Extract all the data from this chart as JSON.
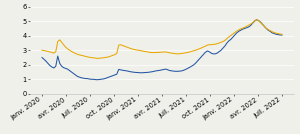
{
  "title": "",
  "ylim": [
    0,
    6
  ],
  "yticks": [
    0,
    1,
    2,
    3,
    4,
    5,
    6
  ],
  "color_blue": "#2255a4",
  "color_orange": "#e8a800",
  "xtick_labels": [
    "janv. 2020",
    "avr. 2020",
    "juil. 2020",
    "oct. 2020",
    "janv. 2021",
    "avr. 2021",
    "juil. 2021",
    "oct. 2021",
    "janv. 2022",
    "avr. 2022",
    "juil. 2022"
  ],
  "blue_y": [
    2.5,
    2.38,
    2.25,
    2.1,
    1.95,
    1.85,
    1.78,
    1.9,
    2.6,
    2.1,
    1.9,
    1.8,
    1.75,
    1.7,
    1.6,
    1.5,
    1.4,
    1.3,
    1.2,
    1.15,
    1.1,
    1.08,
    1.05,
    1.05,
    1.02,
    1.0,
    1.0,
    0.98,
    0.97,
    0.98,
    1.0,
    1.02,
    1.05,
    1.1,
    1.15,
    1.2,
    1.25,
    1.3,
    1.35,
    1.68,
    1.65,
    1.62,
    1.6,
    1.58,
    1.55,
    1.52,
    1.5,
    1.48,
    1.47,
    1.46,
    1.45,
    1.45,
    1.46,
    1.47,
    1.48,
    1.5,
    1.52,
    1.55,
    1.58,
    1.6,
    1.62,
    1.65,
    1.68,
    1.7,
    1.65,
    1.6,
    1.58,
    1.56,
    1.55,
    1.55,
    1.56,
    1.58,
    1.62,
    1.68,
    1.75,
    1.82,
    1.9,
    1.98,
    2.1,
    2.25,
    2.4,
    2.55,
    2.7,
    2.85,
    2.95,
    2.9,
    2.8,
    2.75,
    2.75,
    2.8,
    2.9,
    3.0,
    3.15,
    3.3,
    3.5,
    3.65,
    3.75,
    3.9,
    4.05,
    4.2,
    4.3,
    4.38,
    4.45,
    4.5,
    4.55,
    4.6,
    4.7,
    4.85,
    5.0,
    5.1,
    5.05,
    4.95,
    4.8,
    4.65,
    4.5,
    4.38,
    4.3,
    4.2,
    4.15,
    4.1,
    4.08,
    4.05,
    4.05
  ],
  "orange_y": [
    3.0,
    2.98,
    2.95,
    2.92,
    2.88,
    2.85,
    2.8,
    2.9,
    3.6,
    3.72,
    3.55,
    3.38,
    3.22,
    3.1,
    3.0,
    2.92,
    2.85,
    2.78,
    2.72,
    2.68,
    2.65,
    2.62,
    2.58,
    2.55,
    2.52,
    2.5,
    2.48,
    2.46,
    2.44,
    2.45,
    2.46,
    2.48,
    2.5,
    2.52,
    2.55,
    2.6,
    2.65,
    2.7,
    2.78,
    3.35,
    3.38,
    3.32,
    3.28,
    3.22,
    3.18,
    3.12,
    3.08,
    3.05,
    3.02,
    3.0,
    2.98,
    2.95,
    2.92,
    2.9,
    2.88,
    2.85,
    2.84,
    2.84,
    2.85,
    2.85,
    2.86,
    2.87,
    2.88,
    2.88,
    2.85,
    2.82,
    2.8,
    2.78,
    2.76,
    2.75,
    2.76,
    2.78,
    2.8,
    2.82,
    2.85,
    2.88,
    2.92,
    2.96,
    3.0,
    3.05,
    3.1,
    3.16,
    3.22,
    3.28,
    3.35,
    3.38,
    3.38,
    3.4,
    3.42,
    3.45,
    3.5,
    3.55,
    3.6,
    3.68,
    3.8,
    3.92,
    4.02,
    4.12,
    4.22,
    4.32,
    4.4,
    4.47,
    4.52,
    4.58,
    4.65,
    4.72,
    4.8,
    4.88,
    5.02,
    5.1,
    5.05,
    4.92,
    4.78,
    4.65,
    4.52,
    4.42,
    4.35,
    4.28,
    4.22,
    4.18,
    4.15,
    4.12,
    4.1
  ],
  "background_color": "#f0f0eb",
  "grid_color": "#ffffff",
  "tick_fontsize": 4.8,
  "legend_fontsize": 4.5,
  "linewidth": 0.75
}
